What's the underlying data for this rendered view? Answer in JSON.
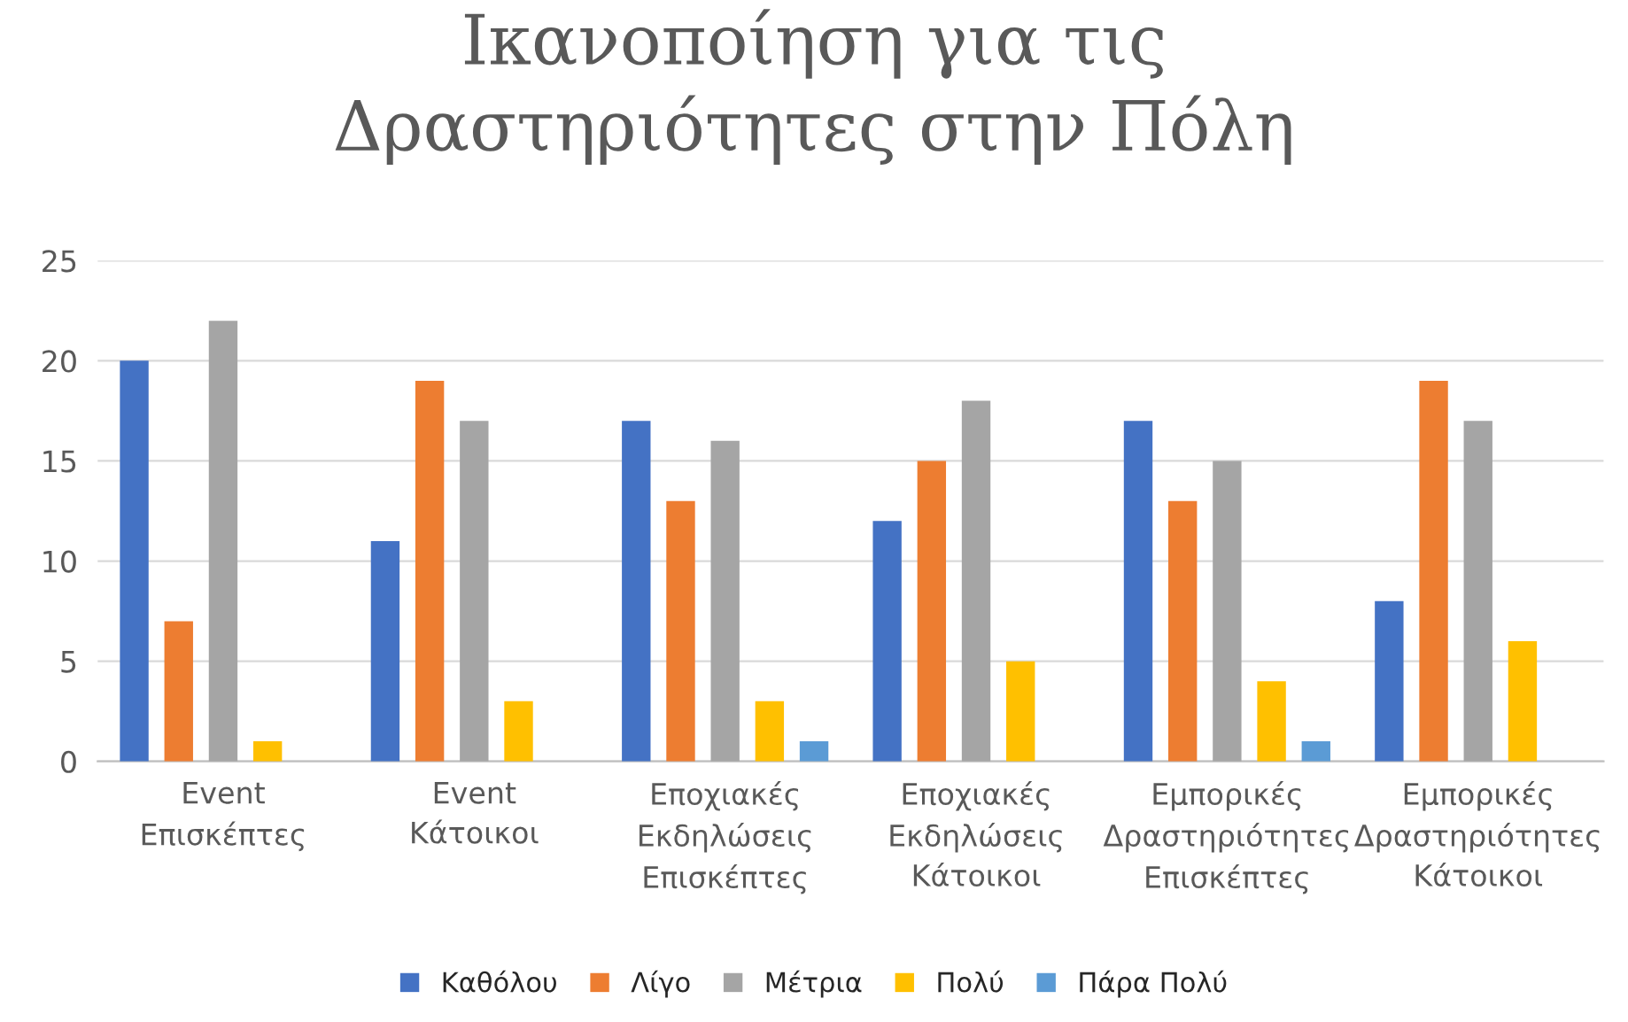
{
  "chart_data": {
    "type": "bar",
    "title": "Ικανοποίηση για τις\nΔραστηριότητες στην Πόλη",
    "categories": [
      "Event Επισκέπτες",
      "Event Κάτοικοι",
      "Εποχιακές Εκδηλώσεις Επισκέπτες",
      "Εποχιακές Εκδηλώσεις Κάτοικοι",
      "Εμπορικές Δραστηριότητες Επισκέπτες",
      "Εμπορικές Δραστηριότητες Κάτοικοι"
    ],
    "series": [
      {
        "name": "Καθόλου",
        "color": "#4472c4",
        "values": [
          20,
          11,
          17,
          12,
          17,
          8
        ]
      },
      {
        "name": "Λίγο",
        "color": "#ed7d31",
        "values": [
          7,
          19,
          13,
          15,
          13,
          19
        ]
      },
      {
        "name": "Μέτρια",
        "color": "#a5a5a5",
        "values": [
          22,
          17,
          16,
          18,
          15,
          17
        ]
      },
      {
        "name": "Πολύ",
        "color": "#ffc000",
        "values": [
          1,
          3,
          3,
          5,
          4,
          6
        ]
      },
      {
        "name": "Πάρα Πολύ",
        "color": "#5b9bd5",
        "values": [
          null,
          null,
          1,
          null,
          1,
          null
        ]
      }
    ],
    "ylim": [
      0,
      25
    ],
    "yticks": [
      0,
      5,
      10,
      15,
      20,
      25
    ],
    "grid": "y",
    "legend": "bottom"
  }
}
